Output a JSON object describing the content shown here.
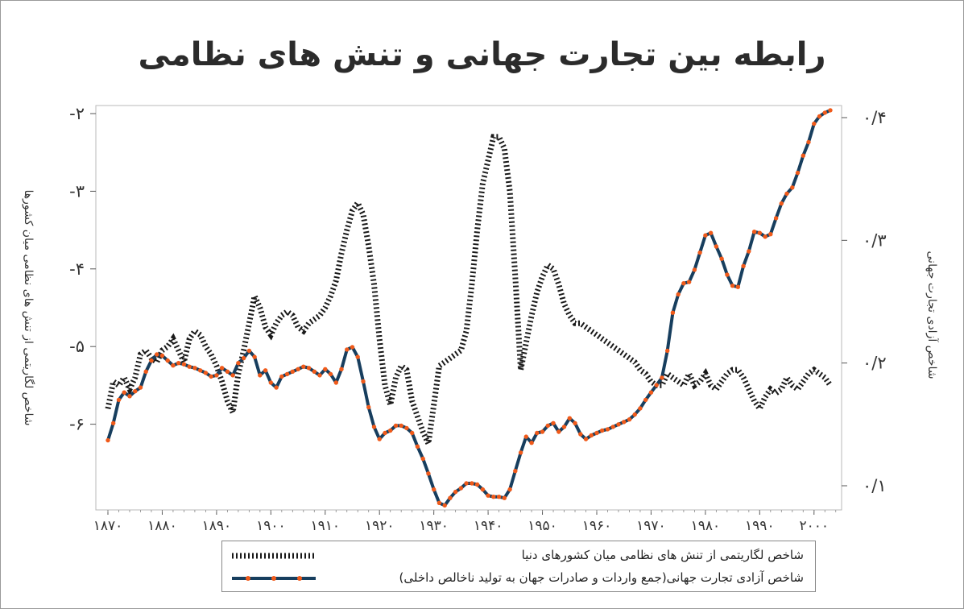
{
  "chart_data": {
    "type": "line",
    "title": "رابطه بین تجارت جهانی و تنش های نظامی",
    "ylabel_left": "شاخص لگاریتمی از تنش های نظامی میان کشورها",
    "ylabel_right": "شاخص آزادی تجارت جهانی",
    "xlim": [
      1870,
      2005
    ],
    "ylim_left": [
      -7.0,
      -1.9
    ],
    "ylim_right": [
      0.08,
      0.41
    ],
    "x_ticks": [
      1870,
      1880,
      1890,
      1900,
      1910,
      1920,
      1930,
      1940,
      1950,
      1960,
      1970,
      1980,
      1990,
      2000
    ],
    "x_tick_labels": [
      "۱۸۷۰",
      "۱۸۸۰",
      "۱۸۹۰",
      "۱۹۰۰",
      "۱۹۱۰",
      "۱۹۲۰",
      "۱۹۳۰",
      "۱۹۴۰",
      "۱۹۵۰",
      "۱۹۶۰",
      "۱۹۷۰",
      "۱۹۸۰",
      "۱۹۹۰",
      "۲۰۰۰"
    ],
    "y_left_ticks": [
      -2,
      -3,
      -4,
      -5,
      -6
    ],
    "y_left_tick_labels": [
      "-۲",
      "-۳",
      "-۴",
      "-۵",
      "-۶"
    ],
    "y_right_ticks": [
      0.4,
      0.3,
      0.2,
      0.1
    ],
    "y_right_tick_labels": [
      "۰/۴",
      "۰/۳",
      "۰/۲",
      "۰/۱"
    ],
    "grid": false,
    "legend_position": "bottom",
    "series": [
      {
        "name": "شاخص لگاریتمی از تنش های نظامی میان کشورها دنیا",
        "axis": "left",
        "style": "dotted-black",
        "color": "#1a1a1a",
        "x": [
          1870,
          1871,
          1872,
          1873,
          1874,
          1875,
          1876,
          1877,
          1878,
          1879,
          1880,
          1881,
          1882,
          1883,
          1884,
          1885,
          1886,
          1887,
          1888,
          1889,
          1890,
          1891,
          1892,
          1893,
          1894,
          1895,
          1896,
          1897,
          1898,
          1899,
          1900,
          1901,
          1902,
          1903,
          1904,
          1905,
          1906,
          1907,
          1908,
          1909,
          1910,
          1911,
          1912,
          1913,
          1914,
          1915,
          1916,
          1917,
          1918,
          1919,
          1920,
          1921,
          1922,
          1923,
          1924,
          1925,
          1926,
          1927,
          1928,
          1929,
          1930,
          1931,
          1932,
          1933,
          1934,
          1935,
          1936,
          1937,
          1938,
          1939,
          1940,
          1941,
          1942,
          1943,
          1944,
          1945,
          1946,
          1947,
          1948,
          1949,
          1950,
          1951,
          1952,
          1953,
          1954,
          1955,
          1956,
          1957,
          1958,
          1959,
          1960,
          1961,
          1962,
          1963,
          1964,
          1965,
          1966,
          1967,
          1968,
          1969,
          1970,
          1971,
          1972,
          1973,
          1974,
          1975,
          1976,
          1977,
          1978,
          1979,
          1980,
          1981,
          1982,
          1983,
          1984,
          1985,
          1986,
          1987,
          1988,
          1989,
          1990,
          1991,
          1992,
          1993,
          1994,
          1995,
          1996,
          1997,
          1998,
          1999,
          2000,
          2001,
          2002,
          2003
        ],
        "values": [
          -5.8,
          -5.45,
          -5.5,
          -5.4,
          -5.55,
          -5.4,
          -5.1,
          -5.05,
          -5.15,
          -5.2,
          -5.05,
          -5.0,
          -4.9,
          -5.05,
          -5.2,
          -4.9,
          -4.8,
          -4.85,
          -5.0,
          -5.1,
          -5.25,
          -5.45,
          -5.7,
          -5.85,
          -5.35,
          -5.05,
          -4.7,
          -4.35,
          -4.5,
          -4.75,
          -4.85,
          -4.7,
          -4.6,
          -4.55,
          -4.6,
          -4.75,
          -4.8,
          -4.7,
          -4.65,
          -4.6,
          -4.5,
          -4.35,
          -4.15,
          -3.8,
          -3.5,
          -3.25,
          -3.15,
          -3.3,
          -3.7,
          -4.2,
          -4.9,
          -5.5,
          -5.75,
          -5.4,
          -5.25,
          -5.3,
          -5.7,
          -5.9,
          -6.1,
          -6.25,
          -5.75,
          -5.25,
          -5.2,
          -5.15,
          -5.1,
          -5.05,
          -4.8,
          -4.2,
          -3.5,
          -2.9,
          -2.6,
          -2.3,
          -2.3,
          -2.45,
          -3.0,
          -4.1,
          -5.3,
          -4.95,
          -4.6,
          -4.3,
          -4.1,
          -3.95,
          -4.0,
          -4.2,
          -4.45,
          -4.6,
          -4.7,
          -4.7,
          -4.75,
          -4.8,
          -4.85,
          -4.9,
          -4.95,
          -5.0,
          -5.05,
          -5.1,
          -5.15,
          -5.2,
          -5.3,
          -5.35,
          -5.45,
          -5.5,
          -5.5,
          -5.35,
          -5.4,
          -5.45,
          -5.5,
          -5.35,
          -5.5,
          -5.45,
          -5.35,
          -5.5,
          -5.55,
          -5.45,
          -5.35,
          -5.3,
          -5.3,
          -5.4,
          -5.55,
          -5.7,
          -5.8,
          -5.65,
          -5.55,
          -5.6,
          -5.55,
          -5.4,
          -5.5,
          -5.55,
          -5.45,
          -5.35,
          -5.3,
          -5.35,
          -5.4,
          -5.5
        ]
      },
      {
        "name": "شاخص آزادی تجارت جهانی(جمع واردات و صادرات جهان به تولید ناخالص داخلی)",
        "axis": "right",
        "style": "solid-with-markers",
        "color": "#173e5e",
        "marker_color": "#f05a1a",
        "x": [
          1870,
          1871,
          1872,
          1873,
          1874,
          1875,
          1876,
          1877,
          1878,
          1879,
          1880,
          1881,
          1882,
          1883,
          1884,
          1885,
          1886,
          1887,
          1888,
          1889,
          1890,
          1891,
          1892,
          1893,
          1894,
          1895,
          1896,
          1897,
          1898,
          1899,
          1900,
          1901,
          1902,
          1903,
          1904,
          1905,
          1906,
          1907,
          1908,
          1909,
          1910,
          1911,
          1912,
          1913,
          1914,
          1915,
          1916,
          1917,
          1918,
          1919,
          1920,
          1921,
          1922,
          1923,
          1924,
          1925,
          1926,
          1927,
          1928,
          1929,
          1930,
          1931,
          1932,
          1933,
          1934,
          1935,
          1936,
          1937,
          1938,
          1939,
          1940,
          1941,
          1942,
          1943,
          1944,
          1945,
          1946,
          1947,
          1948,
          1949,
          1950,
          1951,
          1952,
          1953,
          1954,
          1955,
          1956,
          1957,
          1958,
          1959,
          1960,
          1961,
          1962,
          1963,
          1964,
          1965,
          1966,
          1967,
          1968,
          1969,
          1970,
          1971,
          1972,
          1973,
          1974,
          1975,
          1976,
          1977,
          1978,
          1979,
          1980,
          1981,
          1982,
          1983,
          1984,
          1985,
          1986,
          1987,
          1988,
          1989,
          1990,
          1991,
          1992,
          1993,
          1994,
          1995,
          1996,
          1997,
          1998,
          1999,
          2000,
          2001,
          2002,
          2003
        ],
        "values": [
          0.137,
          0.151,
          0.17,
          0.176,
          0.173,
          0.177,
          0.18,
          0.193,
          0.202,
          0.207,
          0.206,
          0.202,
          0.198,
          0.2,
          0.199,
          0.197,
          0.196,
          0.194,
          0.192,
          0.189,
          0.19,
          0.196,
          0.193,
          0.19,
          0.2,
          0.204,
          0.21,
          0.205,
          0.19,
          0.194,
          0.184,
          0.18,
          0.189,
          0.191,
          0.193,
          0.195,
          0.197,
          0.196,
          0.193,
          0.19,
          0.195,
          0.191,
          0.184,
          0.195,
          0.211,
          0.213,
          0.205,
          0.185,
          0.164,
          0.148,
          0.138,
          0.143,
          0.145,
          0.149,
          0.149,
          0.147,
          0.143,
          0.132,
          0.122,
          0.11,
          0.097,
          0.086,
          0.084,
          0.09,
          0.095,
          0.098,
          0.102,
          0.102,
          0.101,
          0.097,
          0.092,
          0.091,
          0.091,
          0.09,
          0.097,
          0.112,
          0.127,
          0.14,
          0.135,
          0.143,
          0.144,
          0.149,
          0.151,
          0.144,
          0.148,
          0.155,
          0.151,
          0.142,
          0.138,
          0.141,
          0.143,
          0.145,
          0.146,
          0.148,
          0.15,
          0.152,
          0.154,
          0.158,
          0.163,
          0.17,
          0.176,
          0.182,
          0.188,
          0.21,
          0.241,
          0.256,
          0.265,
          0.266,
          0.276,
          0.29,
          0.304,
          0.306,
          0.295,
          0.285,
          0.272,
          0.263,
          0.262,
          0.279,
          0.291,
          0.307,
          0.306,
          0.303,
          0.305,
          0.318,
          0.33,
          0.338,
          0.343,
          0.355,
          0.369,
          0.38,
          0.395,
          0.401,
          0.404,
          0.406
        ]
      }
    ]
  },
  "legend": {
    "dotted_label": "شاخص لگاریتمی از تنش های نظامی میان کشورهای دنیا",
    "solid_label": "شاخص آزادی تجارت جهانی(جمع واردات و صادرات جهان به تولید ناخالص داخلی)"
  }
}
